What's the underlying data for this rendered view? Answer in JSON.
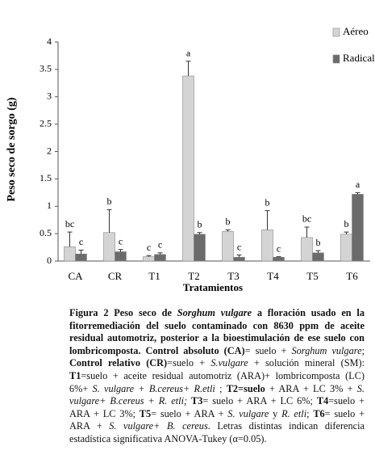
{
  "chart_data": {
    "type": "bar",
    "y_label": "Peso seco de sorgo (g)",
    "x_label": "Tratamientos",
    "categories": [
      "CA",
      "CR",
      "T1",
      "T2",
      "T3",
      "T4",
      "T5",
      "T6"
    ],
    "series": [
      {
        "name": "Aéreo",
        "color": "#d4d4d4",
        "values": [
          0.26,
          0.52,
          0.08,
          3.38,
          0.54,
          0.57,
          0.43,
          0.49
        ],
        "errors": [
          0.27,
          0.42,
          0.02,
          0.27,
          0.03,
          0.35,
          0.19,
          0.04
        ],
        "letters": [
          "bc",
          "b",
          "c",
          "a",
          "b",
          "b",
          "bc",
          "b"
        ]
      },
      {
        "name": "Radical",
        "color": "#6b6b6b",
        "values": [
          0.13,
          0.17,
          0.12,
          0.49,
          0.07,
          0.07,
          0.15,
          1.22
        ],
        "errors": [
          0.07,
          0.04,
          0.03,
          0.03,
          0.04,
          0.01,
          0.04,
          0.03
        ],
        "letters": [
          "c",
          "c",
          "c",
          "b",
          "c",
          "c",
          "b",
          "a"
        ]
      }
    ],
    "ylim": [
      0,
      4
    ],
    "yticks": [
      0,
      0.5,
      1,
      1.5,
      2,
      2.5,
      3,
      3.5,
      4
    ],
    "grid": false
  },
  "caption": [
    "Figura 2 Peso seco de ",
    "Sorghum vulgare",
    " a floración usado en la fitorremediación del suelo contaminado con 8630 ppm de aceite residual automotriz, posterior a la bioestimulación de ese suelo con lombricomposta. Control absoluto (CA)",
    "= suelo + ",
    "Sorghum vulgare",
    "; ",
    "Control relativo (CR)",
    "=suelo + ",
    "S.vulgare",
    " + solución mineral (SM): ",
    "T1",
    "=suelo + aceite residual automotriz (ARA)+ lombricomposta (LC) 6%+ ",
    "S. vulgare + B.cereus+ R.etli",
    " ; ",
    "T2=suelo",
    " + ARA + LC 3% + ",
    "S. vulgare+ B.cereus + R. etli; ",
    "T3",
    "= suelo + ARA + LC 6%; ",
    "T4",
    "=suelo + ARA + LC 3%; ",
    "T5",
    "= suelo + ARA + ",
    "S. vulgare",
    " y ",
    "R. etli",
    "; ",
    "T6",
    "= suelo + ARA + ",
    "S. vulgare+ B. cereus",
    ". Letras distintas indican diferencia estadística significativa ANOVA-Tukey (α=0.05)."
  ]
}
